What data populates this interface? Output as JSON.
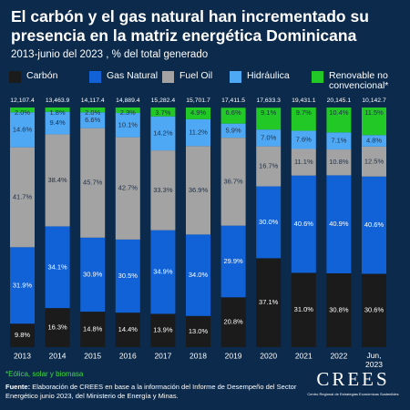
{
  "chart_data": {
    "type": "stacked_bar",
    "title": "El carbón y el gas natural han incrementado su presencia en la matriz energética Dominicana",
    "subtitle": "2013-junio del 2023 , % del total generado",
    "categories": [
      "2013",
      "2014",
      "2015",
      "2016",
      "2017",
      "2018",
      "2019",
      "2020",
      "2021",
      "2022",
      "Jun, 2023"
    ],
    "ylim": [
      0,
      100
    ],
    "series": [
      {
        "name": "Carbón",
        "color": "#1b1b1b",
        "values": [
          9.8,
          16.3,
          14.8,
          14.4,
          13.9,
          13.0,
          20.8,
          37.1,
          31.0,
          30.8,
          30.6
        ],
        "value_labels": [
          "9.8%",
          "16.3%",
          "14.8%",
          "14.4%",
          "13.9%",
          "13.0%",
          "20.8%",
          "37.1%",
          "31.0%",
          "30.8%",
          "30.6%"
        ]
      },
      {
        "name": "Gas Natural",
        "color": "#1062d6",
        "values": [
          31.9,
          34.1,
          30.9,
          30.5,
          34.9,
          34.0,
          29.9,
          30.0,
          40.6,
          40.9,
          40.6
        ],
        "value_labels": [
          "31.9%",
          "34.1%",
          "30.9%",
          "30.5%",
          "34.9%",
          "34.0%",
          "29.9%",
          "30.0%",
          "40.6%",
          "40.9%",
          "40.6%"
        ]
      },
      {
        "name": "Fuel Oil",
        "color": "#a3a3a3",
        "values": [
          41.7,
          38.4,
          45.7,
          42.7,
          33.3,
          36.9,
          36.7,
          16.7,
          11.1,
          10.8,
          12.5
        ],
        "value_labels": [
          "41.7%",
          "38.4%",
          "45.7%",
          "42.7%",
          "33.3%",
          "36.9%",
          "36.7%",
          "16.7%",
          "11.1%",
          "10.8%",
          "12.5%"
        ]
      },
      {
        "name": "Hidráulica",
        "color": "#4fa8f4",
        "values": [
          14.6,
          9.4,
          6.6,
          10.1,
          14.2,
          11.2,
          5.9,
          7.0,
          7.6,
          7.1,
          4.8
        ],
        "value_labels": [
          "14.6%",
          "9.4%",
          "6.6%",
          "10.1%",
          "14.2%",
          "11.2%",
          "5.9%",
          "7.0%",
          "7.6%",
          "7.1%",
          "4.8%"
        ]
      },
      {
        "name": "Renovable no convencional*",
        "color": "#22c826",
        "values": [
          2.0,
          1.8,
          2.0,
          2.3,
          3.7,
          4.9,
          6.6,
          9.1,
          9.7,
          10.4,
          11.5
        ],
        "value_labels": [
          "2.0%",
          "1.8%",
          "2.0%",
          "2.3%",
          "3.7%",
          "4.9%",
          "6.6%",
          "9.1%",
          "9.7%",
          "10.4%",
          "11.5%"
        ]
      }
    ],
    "totals": {
      "values": [
        12107.4,
        13463.9,
        14117.4,
        14889.4,
        15282.4,
        15701.7,
        17411.5,
        17633.3,
        19431.1,
        20145.1,
        10142.7
      ],
      "value_labels": [
        "12,107.4",
        "13,463.9",
        "14,117.4",
        "14,889.4",
        "15,282.4",
        "15,701.7",
        "17,411.5",
        "17,633.3",
        "19,431.1",
        "20,145.1",
        "10,142.7"
      ]
    },
    "footnote": "*Eólica, solar y biomasa",
    "source_label": "Fuente:",
    "source": "Elaboración de CREES en base a la información del Informe de Desempeño del Sector Energético junio 2023, del Ministerio de Energía y Minas.",
    "logo": {
      "name": "CREES",
      "subtitle": "Centro Regional de Estrategias Económicas Sostenibles"
    }
  }
}
